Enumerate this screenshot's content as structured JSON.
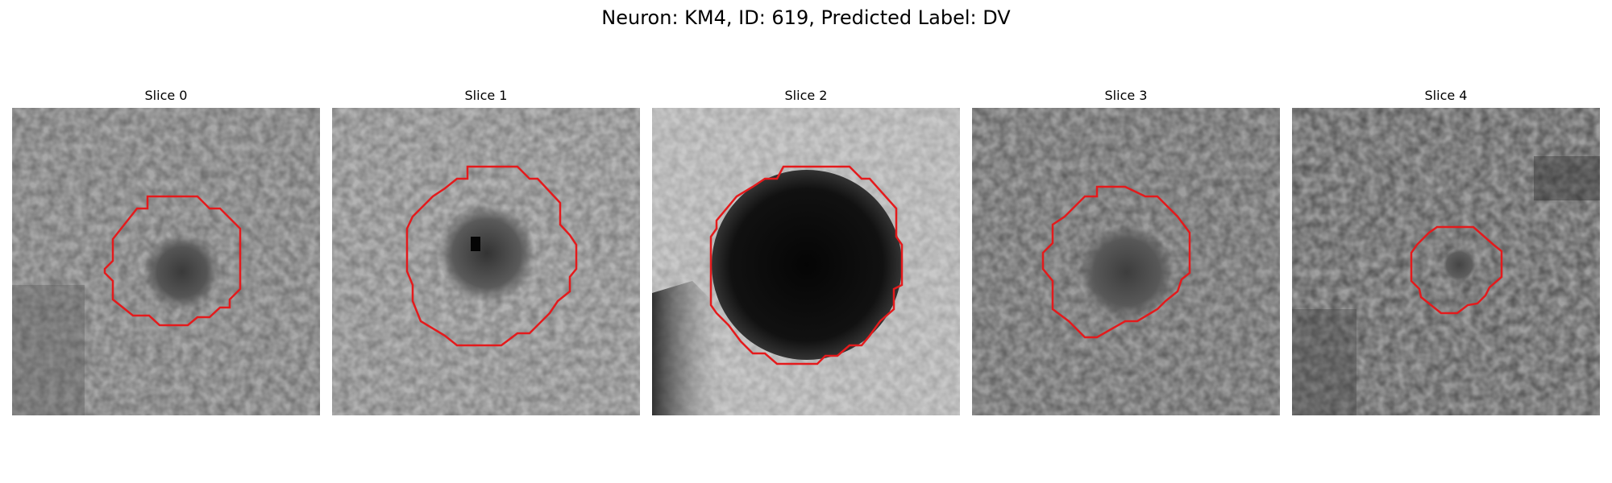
{
  "figure": {
    "title": "Neuron: KM4, ID: 619, Predicted Label: DV"
  },
  "colors": {
    "contour": "#e41a1c",
    "background": "#ffffff"
  },
  "panels": [
    {
      "title": "Slice 0"
    },
    {
      "title": "Slice 1"
    },
    {
      "title": "Slice 2"
    },
    {
      "title": "Slice 3"
    },
    {
      "title": "Slice 4"
    }
  ]
}
